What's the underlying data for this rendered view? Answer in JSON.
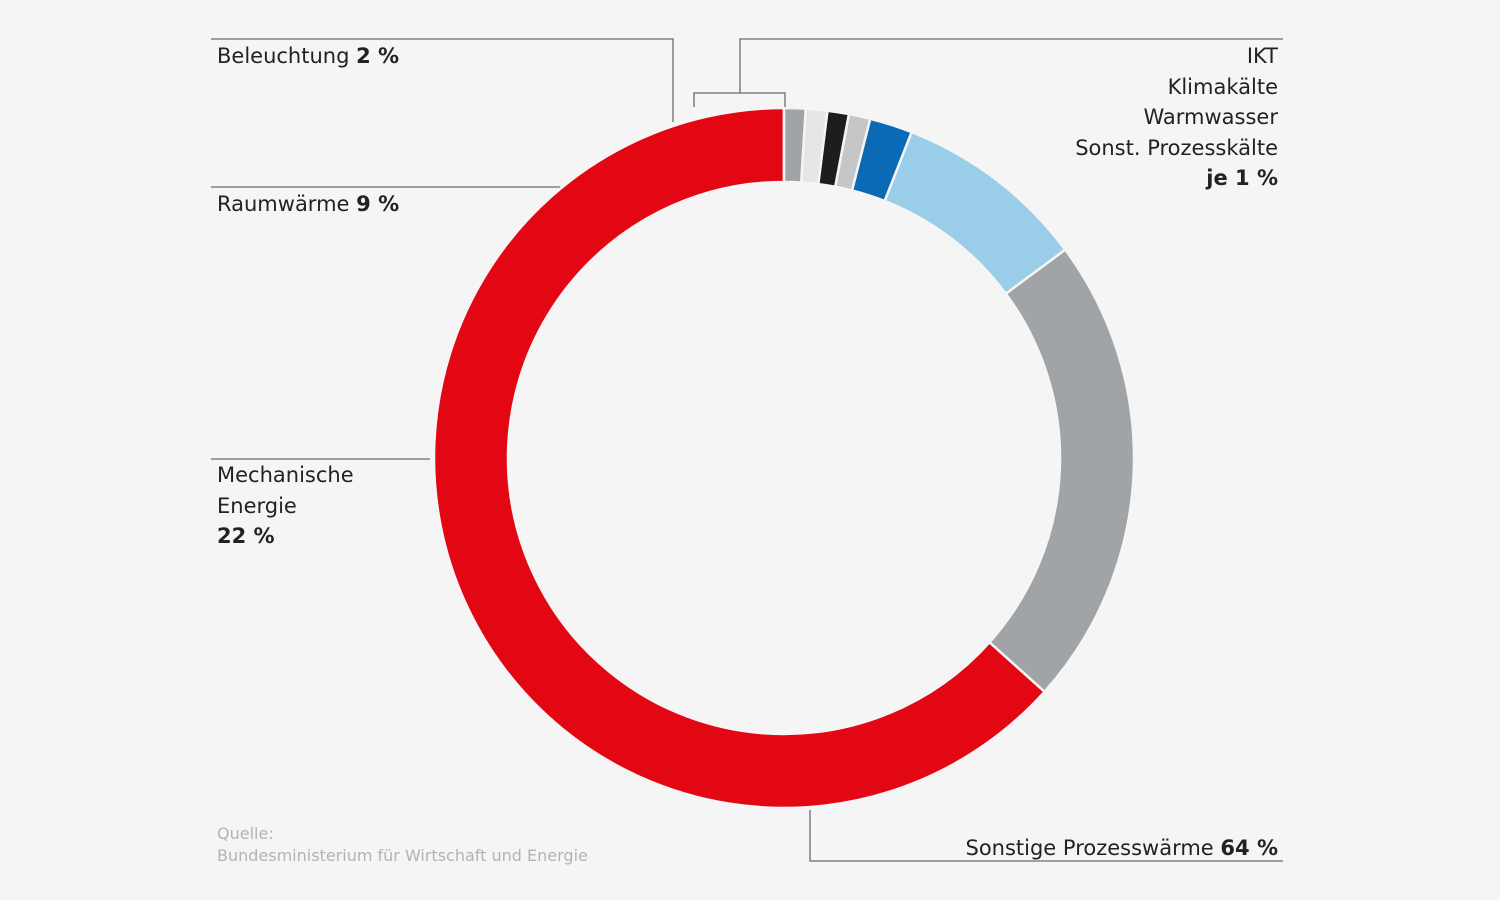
{
  "chart_data": {
    "type": "pie",
    "variant": "donut",
    "start": "top",
    "direction": "clockwise",
    "slices": [
      {
        "label": "Sonstige Prozesswärme",
        "value": 64,
        "color": "#e30613"
      },
      {
        "label": "Mechanische Energie",
        "value": 22,
        "color": "#a1a4a6"
      },
      {
        "label": "Raumwärme",
        "value": 9,
        "color": "#99cde8"
      },
      {
        "label": "Beleuchtung",
        "value": 2,
        "color": "#0a6ab6"
      },
      {
        "label": "IKT",
        "value": 1,
        "color": "#c5c6c8"
      },
      {
        "label": "Klimakälte",
        "value": 1,
        "color": "#1d1d1b"
      },
      {
        "label": "Warmwasser",
        "value": 1,
        "color": "#e6e6e6"
      },
      {
        "label": "Sonst. Prozesskälte",
        "value": 1,
        "color": "#a1a4a6"
      }
    ],
    "labels": {
      "beleuchtung": {
        "name": "Beleuchtung",
        "value": "2 %"
      },
      "raumwaerme": {
        "name": "Raumwärme",
        "value": "9 %"
      },
      "mechanisch": {
        "line1": "Mechanische",
        "line2": "Energie",
        "value": "22 %"
      },
      "small_group": {
        "lines": [
          "IKT",
          "Klimakälte",
          "Warmwasser",
          "Sonst. Prozesskälte"
        ],
        "value": "je 1 %"
      },
      "prozesswaerme": {
        "name": "Sonstige Prozesswärme",
        "value": "64 %"
      }
    }
  },
  "source": {
    "label": "Quelle:",
    "text": "Bundesministerium für Wirtschaft und Energie"
  }
}
